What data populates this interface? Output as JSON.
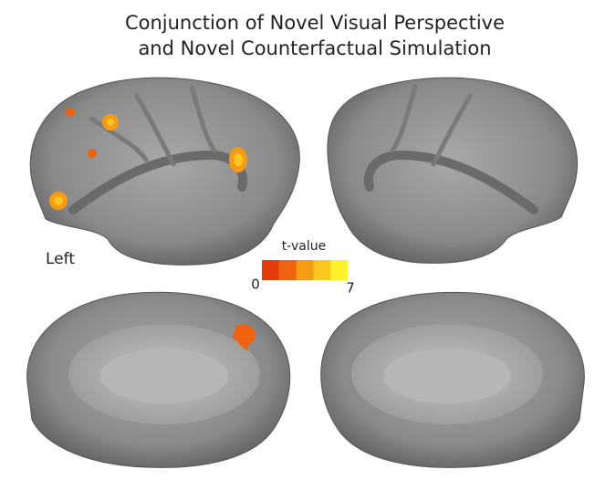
{
  "title": [
    "Conjunction of Novel Visual Perspective",
    "and Novel Counterfactual Simulation"
  ],
  "hemisphere_label": "Left",
  "colorbar": {
    "label": "t-value",
    "min": 0,
    "max": 7,
    "colors": [
      "#e63c0c",
      "#f0620e",
      "#f59c14",
      "#fbc61e",
      "#fff22a"
    ]
  }
}
